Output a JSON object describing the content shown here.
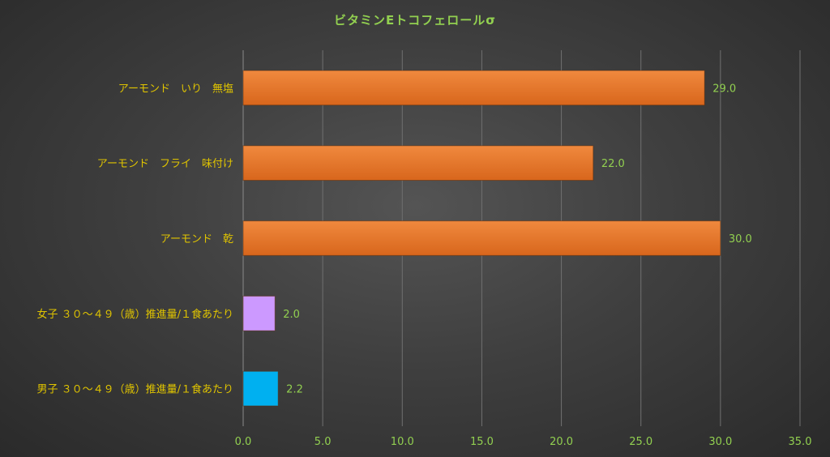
{
  "chart_data": {
    "type": "bar",
    "orientation": "horizontal",
    "title": "ビタミンEトコフェロールσ",
    "categories": [
      "アーモンド　いり　無塩",
      "アーモンド　フライ　味付け",
      "アーモンド　乾",
      "女子 ３０～４９（歳）推進量/１食あたり",
      "男子 ３０～４９（歳）推進量/１食あたり"
    ],
    "values": [
      29.0,
      22.0,
      30.0,
      2.0,
      2.2
    ],
    "value_labels": [
      "29.0",
      "22.0",
      "30.0",
      "2.0",
      "2.2"
    ],
    "bar_colors": [
      "#ed7d31",
      "#ed7d31",
      "#ed7d31",
      "#cc99ff",
      "#00b0f0"
    ],
    "xlim": [
      0,
      35
    ],
    "xticks": [
      "0.0",
      "5.0",
      "10.0",
      "15.0",
      "20.0",
      "25.0",
      "30.0",
      "35.0"
    ],
    "grid": true,
    "xlabel": "",
    "ylabel": ""
  }
}
